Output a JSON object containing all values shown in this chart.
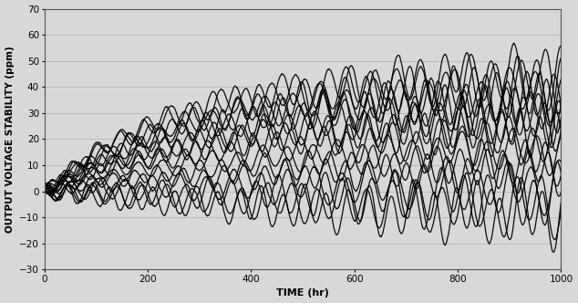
{
  "xlabel": "TIME (hr)",
  "ylabel": "OUTPUT VOLTAGE STABILITY (ppm)",
  "xlim": [
    0,
    1000
  ],
  "ylim": [
    -30,
    70
  ],
  "xticks": [
    0,
    200,
    400,
    600,
    800,
    1000
  ],
  "yticks": [
    -30,
    -20,
    -10,
    0,
    10,
    20,
    30,
    40,
    50,
    60,
    70
  ],
  "bg_color": "#d8d8d8",
  "line_color": "#000000",
  "grid_color": "#bcbcbc",
  "linewidth": 0.9,
  "num_points": 3000,
  "curves": [
    {
      "trend_final": 45,
      "trend_tau": 250,
      "amp_start": 2,
      "amp_end": 10,
      "freq": 0.14,
      "phase": 0.0,
      "noise_scale": 1.2
    },
    {
      "trend_final": 42,
      "trend_tau": 220,
      "amp_start": 2,
      "amp_end": 10,
      "freq": 0.13,
      "phase": 1.1,
      "noise_scale": 1.0
    },
    {
      "trend_final": 40,
      "trend_tau": 260,
      "amp_start": 2,
      "amp_end": 10,
      "freq": 0.15,
      "phase": 2.3,
      "noise_scale": 1.1
    },
    {
      "trend_final": 38,
      "trend_tau": 240,
      "amp_start": 2,
      "amp_end": 9,
      "freq": 0.12,
      "phase": 0.5,
      "noise_scale": 1.0
    },
    {
      "trend_final": 36,
      "trend_tau": 270,
      "amp_start": 2,
      "amp_end": 9,
      "freq": 0.16,
      "phase": 3.0,
      "noise_scale": 1.2
    },
    {
      "trend_final": 33,
      "trend_tau": 230,
      "amp_start": 2,
      "amp_end": 9,
      "freq": 0.14,
      "phase": 1.7,
      "noise_scale": 1.0
    },
    {
      "trend_final": 30,
      "trend_tau": 280,
      "amp_start": 2,
      "amp_end": 9,
      "freq": 0.13,
      "phase": 2.8,
      "noise_scale": 1.1
    },
    {
      "trend_final": 27,
      "trend_tau": 250,
      "amp_start": 2,
      "amp_end": 8,
      "freq": 0.15,
      "phase": 0.8,
      "noise_scale": 1.0
    },
    {
      "trend_final": 24,
      "trend_tau": 260,
      "amp_start": 2,
      "amp_end": 8,
      "freq": 0.17,
      "phase": 2.0,
      "noise_scale": 1.1
    },
    {
      "trend_final": 20,
      "trend_tau": 240,
      "amp_start": 2,
      "amp_end": 8,
      "freq": 0.14,
      "phase": 1.3,
      "noise_scale": 1.0
    },
    {
      "trend_final": 16,
      "trend_tau": 270,
      "amp_start": 2,
      "amp_end": 7,
      "freq": 0.13,
      "phase": 3.2,
      "noise_scale": 1.0
    },
    {
      "trend_final": 12,
      "trend_tau": 290,
      "amp_start": 2,
      "amp_end": 7,
      "freq": 0.15,
      "phase": 0.4,
      "noise_scale": 1.1
    },
    {
      "trend_final": 8,
      "trend_tau": 300,
      "amp_start": 2,
      "amp_end": 7,
      "freq": 0.16,
      "phase": 2.5,
      "noise_scale": 1.0
    },
    {
      "trend_final": 3,
      "trend_tau": 350,
      "amp_start": 3,
      "amp_end": 9,
      "freq": 0.12,
      "phase": 1.6,
      "noise_scale": 1.2
    },
    {
      "trend_final": -2,
      "trend_tau": 400,
      "amp_start": 3,
      "amp_end": 10,
      "freq": 0.14,
      "phase": 0.9,
      "noise_scale": 1.3
    },
    {
      "trend_final": -6,
      "trend_tau": 450,
      "amp_start": 3,
      "amp_end": 10,
      "freq": 0.13,
      "phase": 2.1,
      "noise_scale": 1.2
    },
    {
      "trend_final": -10,
      "trend_tau": 500,
      "amp_start": 3,
      "amp_end": 11,
      "freq": 0.15,
      "phase": 1.4,
      "noise_scale": 1.3
    }
  ]
}
